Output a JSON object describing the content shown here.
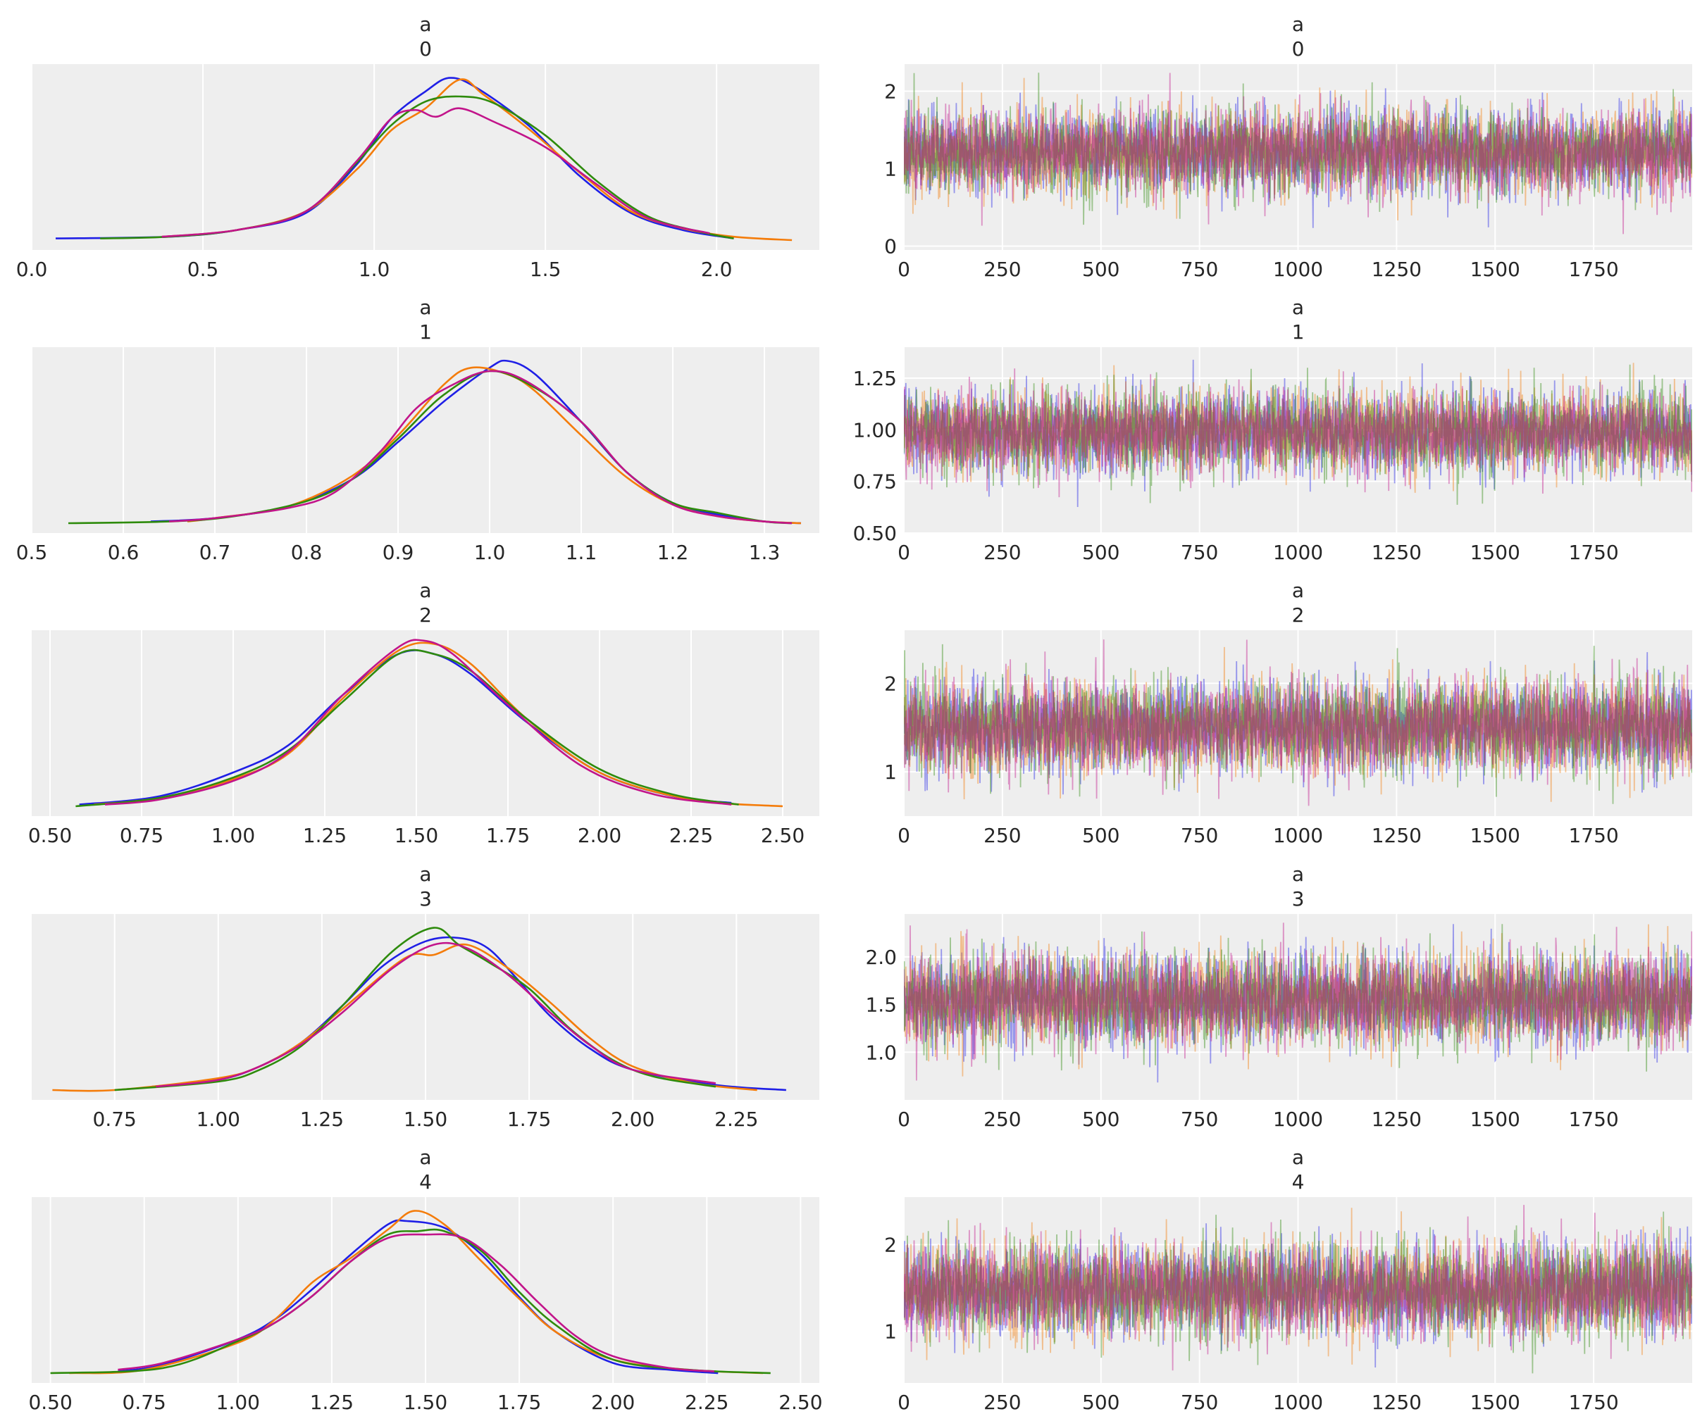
{
  "figure": {
    "background": "#ffffff",
    "panel_background": "#eeeeee",
    "grid_color": "#ffffff",
    "text_color": "#262626"
  },
  "chain_colors": [
    "#1f1fe6",
    "#f47c0a",
    "#2e8b0c",
    "#c2148a"
  ],
  "chart_data": [
    {
      "type": "line",
      "kind": "density",
      "var": "a",
      "coord": "0",
      "xlim": [
        0.0,
        2.3
      ],
      "xticks": [
        0.0,
        0.5,
        1.0,
        1.5,
        2.0
      ],
      "xtick_labels": [
        "0.0",
        "0.5",
        "1.0",
        "1.5",
        "2.0"
      ],
      "show_yticks": false,
      "series": [
        {
          "x": [
            0.07,
            0.4,
            0.6,
            0.8,
            0.95,
            1.05,
            1.15,
            1.22,
            1.3,
            1.45,
            1.6,
            1.75,
            1.9,
            2.05
          ],
          "y": [
            0.01,
            0.02,
            0.06,
            0.16,
            0.45,
            0.72,
            0.88,
            0.96,
            0.9,
            0.68,
            0.38,
            0.16,
            0.06,
            0.01
          ]
        },
        {
          "x": [
            0.38,
            0.6,
            0.8,
            0.95,
            1.05,
            1.15,
            1.25,
            1.32,
            1.45,
            1.6,
            1.75,
            1.9,
            2.05,
            2.22
          ],
          "y": [
            0.02,
            0.06,
            0.17,
            0.42,
            0.65,
            0.78,
            0.95,
            0.86,
            0.66,
            0.4,
            0.17,
            0.07,
            0.02,
            0.0
          ]
        },
        {
          "x": [
            0.2,
            0.4,
            0.6,
            0.8,
            0.95,
            1.05,
            1.15,
            1.25,
            1.35,
            1.5,
            1.65,
            1.8,
            1.95,
            2.05
          ],
          "y": [
            0.01,
            0.02,
            0.06,
            0.17,
            0.46,
            0.68,
            0.82,
            0.85,
            0.81,
            0.62,
            0.35,
            0.14,
            0.05,
            0.01
          ]
        },
        {
          "x": [
            0.38,
            0.6,
            0.8,
            0.95,
            1.05,
            1.12,
            1.18,
            1.25,
            1.35,
            1.5,
            1.65,
            1.8,
            1.98
          ],
          "y": [
            0.02,
            0.06,
            0.17,
            0.47,
            0.72,
            0.77,
            0.73,
            0.78,
            0.7,
            0.55,
            0.33,
            0.13,
            0.04
          ]
        }
      ]
    },
    {
      "type": "line",
      "kind": "trace",
      "var": "a",
      "coord": "0",
      "xlim": [
        0,
        2000
      ],
      "ylim": [
        -0.05,
        2.35
      ],
      "xticks": [
        0,
        250,
        500,
        750,
        1000,
        1250,
        1500,
        1750
      ],
      "xtick_labels": [
        "0",
        "250",
        "500",
        "750",
        "1000",
        "1250",
        "1500",
        "1750"
      ],
      "yticks": [
        0,
        1,
        2
      ],
      "ytick_labels": [
        "0",
        "1",
        "2"
      ],
      "n_draws": 2000,
      "mean": 1.22,
      "sd": 0.27,
      "min": 0.07,
      "max": 2.24
    },
    {
      "type": "line",
      "kind": "density",
      "var": "a",
      "coord": "1",
      "xlim": [
        0.5,
        1.36
      ],
      "xticks": [
        0.5,
        0.6,
        0.7,
        0.8,
        0.9,
        1.0,
        1.1,
        1.2,
        1.3
      ],
      "xtick_labels": [
        "0.5",
        "0.6",
        "0.7",
        "0.8",
        "0.9",
        "1.0",
        "1.1",
        "1.2",
        "1.3"
      ],
      "show_yticks": false,
      "series": [
        {
          "x": [
            0.63,
            0.7,
            0.78,
            0.85,
            0.9,
            0.95,
            1.0,
            1.02,
            1.05,
            1.1,
            1.15,
            1.2,
            1.25,
            1.3,
            1.34
          ],
          "y": [
            0.01,
            0.03,
            0.1,
            0.26,
            0.48,
            0.72,
            0.92,
            0.96,
            0.88,
            0.6,
            0.3,
            0.12,
            0.05,
            0.01,
            0.0
          ]
        },
        {
          "x": [
            0.67,
            0.7,
            0.78,
            0.85,
            0.9,
            0.95,
            0.98,
            1.02,
            1.05,
            1.1,
            1.15,
            1.2,
            1.25,
            1.3,
            1.34
          ],
          "y": [
            0.01,
            0.03,
            0.1,
            0.28,
            0.52,
            0.82,
            0.92,
            0.88,
            0.78,
            0.52,
            0.27,
            0.11,
            0.04,
            0.01,
            0.0
          ]
        },
        {
          "x": [
            0.54,
            0.65,
            0.72,
            0.8,
            0.85,
            0.9,
            0.95,
            1.0,
            1.05,
            1.1,
            1.15,
            1.2,
            1.25,
            1.3,
            1.33
          ],
          "y": [
            0.0,
            0.01,
            0.04,
            0.13,
            0.26,
            0.5,
            0.76,
            0.9,
            0.8,
            0.6,
            0.3,
            0.12,
            0.06,
            0.01,
            0.0
          ]
        },
        {
          "x": [
            0.65,
            0.7,
            0.78,
            0.83,
            0.88,
            0.92,
            0.96,
            1.0,
            1.04,
            1.1,
            1.15,
            1.2,
            1.25,
            1.3,
            1.33
          ],
          "y": [
            0.01,
            0.03,
            0.09,
            0.18,
            0.42,
            0.68,
            0.82,
            0.9,
            0.84,
            0.6,
            0.3,
            0.11,
            0.04,
            0.01,
            0.0
          ]
        }
      ]
    },
    {
      "type": "line",
      "kind": "trace",
      "var": "a",
      "coord": "1",
      "xlim": [
        0,
        2000
      ],
      "ylim": [
        0.5,
        1.4
      ],
      "xticks": [
        0,
        250,
        500,
        750,
        1000,
        1250,
        1500,
        1750
      ],
      "xtick_labels": [
        "0",
        "250",
        "500",
        "750",
        "1000",
        "1250",
        "1500",
        "1750"
      ],
      "yticks": [
        0.5,
        0.75,
        1.0,
        1.25
      ],
      "ytick_labels": [
        "0.50",
        "0.75",
        "1.00",
        "1.25"
      ],
      "n_draws": 2000,
      "mean": 0.99,
      "sd": 0.1,
      "min": 0.54,
      "max": 1.34
    },
    {
      "type": "line",
      "kind": "density",
      "var": "a",
      "coord": "2",
      "xlim": [
        0.45,
        2.6
      ],
      "xticks": [
        0.5,
        0.75,
        1.0,
        1.25,
        1.5,
        1.75,
        2.0,
        2.25,
        2.5
      ],
      "xtick_labels": [
        "0.50",
        "0.75",
        "1.00",
        "1.25",
        "1.50",
        "1.75",
        "2.00",
        "2.25",
        "2.50"
      ],
      "show_yticks": false,
      "series": [
        {
          "x": [
            0.58,
            0.8,
            1.0,
            1.15,
            1.3,
            1.45,
            1.55,
            1.65,
            1.8,
            2.0,
            2.2,
            2.36
          ],
          "y": [
            0.01,
            0.06,
            0.2,
            0.36,
            0.66,
            0.9,
            0.9,
            0.78,
            0.5,
            0.2,
            0.06,
            0.02
          ]
        },
        {
          "x": [
            0.62,
            0.8,
            1.0,
            1.15,
            1.3,
            1.45,
            1.55,
            1.65,
            1.8,
            2.0,
            2.25,
            2.5
          ],
          "y": [
            0.01,
            0.05,
            0.16,
            0.31,
            0.64,
            0.92,
            0.96,
            0.84,
            0.52,
            0.2,
            0.04,
            0.0
          ]
        },
        {
          "x": [
            0.57,
            0.8,
            1.0,
            1.15,
            1.3,
            1.45,
            1.55,
            1.65,
            1.8,
            2.0,
            2.2,
            2.38
          ],
          "y": [
            0.0,
            0.05,
            0.17,
            0.33,
            0.62,
            0.9,
            0.9,
            0.8,
            0.52,
            0.22,
            0.07,
            0.01
          ]
        },
        {
          "x": [
            0.65,
            0.8,
            1.0,
            1.15,
            1.3,
            1.45,
            1.52,
            1.6,
            1.75,
            1.95,
            2.15,
            2.36
          ],
          "y": [
            0.01,
            0.04,
            0.15,
            0.32,
            0.66,
            0.94,
            0.98,
            0.9,
            0.6,
            0.24,
            0.07,
            0.01
          ]
        }
      ]
    },
    {
      "type": "line",
      "kind": "trace",
      "var": "a",
      "coord": "2",
      "xlim": [
        0,
        2000
      ],
      "ylim": [
        0.5,
        2.6
      ],
      "xticks": [
        0,
        250,
        500,
        750,
        1000,
        1250,
        1500,
        1750
      ],
      "xtick_labels": [
        "0",
        "250",
        "500",
        "750",
        "1000",
        "1250",
        "1500",
        "1750"
      ],
      "yticks": [
        1,
        2
      ],
      "ytick_labels": [
        "1",
        "2"
      ],
      "n_draws": 2000,
      "mean": 1.51,
      "sd": 0.26,
      "min": 0.6,
      "max": 2.5
    },
    {
      "type": "line",
      "kind": "density",
      "var": "a",
      "coord": "3",
      "xlim": [
        0.55,
        2.45
      ],
      "xticks": [
        0.75,
        1.0,
        1.25,
        1.5,
        1.75,
        2.0,
        2.25
      ],
      "xtick_labels": [
        "0.75",
        "1.00",
        "1.25",
        "1.50",
        "1.75",
        "2.00",
        "2.25"
      ],
      "show_yticks": false,
      "series": [
        {
          "x": [
            0.84,
            1.0,
            1.1,
            1.2,
            1.3,
            1.4,
            1.5,
            1.58,
            1.65,
            1.72,
            1.8,
            1.9,
            2.0,
            2.2,
            2.37
          ],
          "y": [
            0.02,
            0.06,
            0.14,
            0.28,
            0.5,
            0.74,
            0.88,
            0.9,
            0.84,
            0.66,
            0.44,
            0.24,
            0.12,
            0.03,
            0.0
          ]
        },
        {
          "x": [
            0.6,
            0.75,
            1.0,
            1.1,
            1.2,
            1.3,
            1.45,
            1.52,
            1.6,
            1.7,
            1.8,
            1.9,
            2.0,
            2.15,
            2.3
          ],
          "y": [
            0.0,
            0.0,
            0.07,
            0.14,
            0.28,
            0.48,
            0.78,
            0.8,
            0.86,
            0.72,
            0.52,
            0.3,
            0.14,
            0.04,
            0.0
          ]
        },
        {
          "x": [
            0.75,
            1.0,
            1.1,
            1.2,
            1.3,
            1.42,
            1.52,
            1.58,
            1.65,
            1.75,
            1.85,
            1.95,
            2.05,
            2.2
          ],
          "y": [
            0.0,
            0.05,
            0.12,
            0.26,
            0.5,
            0.82,
            0.96,
            0.86,
            0.76,
            0.6,
            0.36,
            0.18,
            0.08,
            0.02
          ]
        },
        {
          "x": [
            0.85,
            1.0,
            1.1,
            1.2,
            1.3,
            1.42,
            1.52,
            1.6,
            1.7,
            1.8,
            1.9,
            2.0,
            2.2
          ],
          "y": [
            0.02,
            0.06,
            0.14,
            0.27,
            0.46,
            0.72,
            0.86,
            0.84,
            0.68,
            0.46,
            0.26,
            0.12,
            0.04
          ]
        }
      ]
    },
    {
      "type": "line",
      "kind": "trace",
      "var": "a",
      "coord": "3",
      "xlim": [
        0,
        2000
      ],
      "ylim": [
        0.5,
        2.45
      ],
      "xticks": [
        0,
        250,
        500,
        750,
        1000,
        1250,
        1500,
        1750
      ],
      "xtick_labels": [
        "0",
        "250",
        "500",
        "750",
        "1000",
        "1250",
        "1500",
        "1750"
      ],
      "yticks": [
        1.0,
        1.5,
        2.0
      ],
      "ytick_labels": [
        "1.0",
        "1.5",
        "2.0"
      ],
      "n_draws": 2000,
      "mean": 1.55,
      "sd": 0.24,
      "min": 0.58,
      "max": 2.36
    },
    {
      "type": "line",
      "kind": "density",
      "var": "a",
      "coord": "4",
      "xlim": [
        0.45,
        2.55
      ],
      "xticks": [
        0.5,
        0.75,
        1.0,
        1.25,
        1.5,
        1.75,
        2.0,
        2.25,
        2.5
      ],
      "xtick_labels": [
        "0.50",
        "0.75",
        "1.00",
        "1.25",
        "1.50",
        "1.75",
        "2.00",
        "2.25",
        "2.50"
      ],
      "show_yticks": false,
      "series": [
        {
          "x": [
            0.68,
            0.8,
            1.0,
            1.1,
            1.2,
            1.3,
            1.4,
            1.45,
            1.55,
            1.65,
            1.75,
            1.85,
            2.0,
            2.15,
            2.28
          ],
          "y": [
            0.01,
            0.05,
            0.2,
            0.32,
            0.5,
            0.7,
            0.88,
            0.9,
            0.86,
            0.7,
            0.45,
            0.24,
            0.06,
            0.02,
            0.0
          ]
        },
        {
          "x": [
            0.55,
            0.75,
            1.0,
            1.1,
            1.2,
            1.3,
            1.4,
            1.47,
            1.55,
            1.65,
            1.75,
            1.85,
            2.0,
            2.2,
            2.4
          ],
          "y": [
            0.0,
            0.02,
            0.18,
            0.32,
            0.54,
            0.68,
            0.85,
            0.96,
            0.88,
            0.66,
            0.44,
            0.24,
            0.08,
            0.02,
            0.0
          ]
        },
        {
          "x": [
            0.5,
            0.8,
            1.0,
            1.1,
            1.2,
            1.3,
            1.4,
            1.48,
            1.55,
            1.65,
            1.75,
            1.85,
            2.0,
            2.2,
            2.42
          ],
          "y": [
            0.0,
            0.03,
            0.19,
            0.3,
            0.46,
            0.66,
            0.82,
            0.84,
            0.84,
            0.72,
            0.48,
            0.28,
            0.08,
            0.02,
            0.0
          ]
        },
        {
          "x": [
            0.68,
            0.8,
            1.0,
            1.1,
            1.2,
            1.3,
            1.4,
            1.5,
            1.6,
            1.7,
            1.8,
            1.9,
            2.0,
            2.15,
            2.27
          ],
          "y": [
            0.02,
            0.06,
            0.2,
            0.3,
            0.46,
            0.66,
            0.8,
            0.82,
            0.8,
            0.64,
            0.42,
            0.22,
            0.1,
            0.03,
            0.01
          ]
        }
      ]
    },
    {
      "type": "line",
      "kind": "trace",
      "var": "a",
      "coord": "4",
      "xlim": [
        0,
        2000
      ],
      "ylim": [
        0.4,
        2.55
      ],
      "xticks": [
        0,
        250,
        500,
        750,
        1000,
        1250,
        1500,
        1750
      ],
      "xtick_labels": [
        "0",
        "250",
        "500",
        "750",
        "1000",
        "1250",
        "1500",
        "1750"
      ],
      "yticks": [
        1,
        2
      ],
      "ytick_labels": [
        "1",
        "2"
      ],
      "n_draws": 2000,
      "mean": 1.47,
      "sd": 0.27,
      "min": 0.5,
      "max": 2.48
    }
  ]
}
